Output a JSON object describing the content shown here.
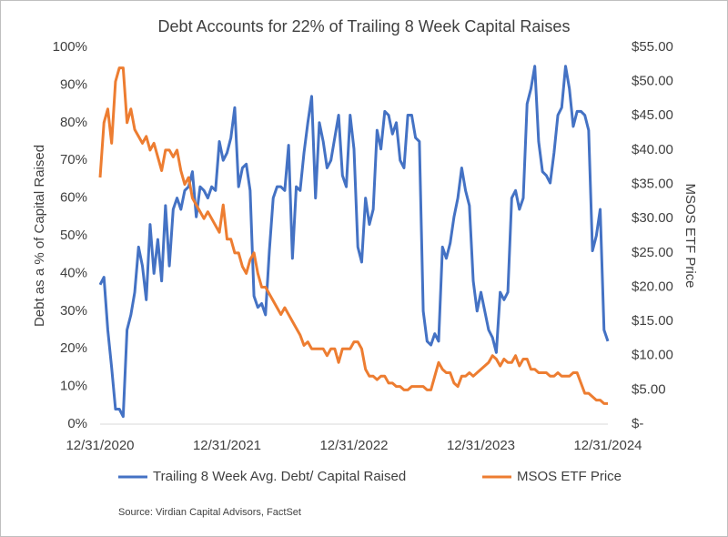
{
  "chart_data": {
    "type": "line",
    "title": "Debt Accounts for 22% of Trailing 8 Week Capital Raises",
    "y_label": "Debt as a % of Capital Raised",
    "y2_label": "MSOS ETF Price",
    "source": "Source: Virdian Capital Advisors, FactSet",
    "categories": [
      "12/31/2020",
      null,
      null,
      null,
      null,
      null,
      null,
      null,
      null,
      null,
      null,
      null,
      null,
      null,
      null,
      null,
      null,
      null,
      null,
      null,
      null,
      null,
      null,
      null,
      null,
      null,
      null,
      null,
      null,
      null,
      null,
      null,
      null,
      "12/31/2021",
      null,
      null,
      null,
      null,
      null,
      null,
      null,
      null,
      null,
      null,
      null,
      null,
      null,
      null,
      null,
      null,
      null,
      null,
      null,
      null,
      null,
      null,
      null,
      null,
      null,
      null,
      null,
      null,
      null,
      null,
      null,
      null,
      "12/31/2022",
      null,
      null,
      null,
      null,
      null,
      null,
      null,
      null,
      null,
      null,
      null,
      null,
      null,
      null,
      null,
      null,
      null,
      null,
      null,
      null,
      null,
      null,
      null,
      null,
      null,
      null,
      null,
      null,
      null,
      null,
      null,
      null,
      "12/31/2023",
      null,
      null,
      null,
      null,
      null,
      null,
      null,
      null,
      null,
      null,
      null,
      null,
      null,
      null,
      null,
      null,
      null,
      null,
      null,
      null,
      null,
      null,
      null,
      null,
      null,
      null,
      null,
      null,
      null,
      null,
      null,
      null,
      "12/31/2024"
    ],
    "series": [
      {
        "name": "Trailing 8 Week Avg. Debt/ Capital Raised",
        "color": "#4472c4",
        "axis": "y",
        "values": [
          37,
          39,
          25,
          15,
          4,
          4,
          2,
          25,
          29,
          35,
          47,
          42,
          33,
          53,
          40,
          49,
          38,
          58,
          42,
          57,
          60,
          57,
          62,
          63,
          67,
          55,
          63,
          62,
          60,
          63,
          62,
          75,
          70,
          72,
          76,
          84,
          63,
          68,
          69,
          62,
          34,
          31,
          32,
          29,
          46,
          60,
          63,
          63,
          62,
          74,
          44,
          63,
          62,
          72,
          80,
          87,
          60,
          80,
          75,
          68,
          70,
          76,
          82,
          66,
          63,
          82,
          73,
          47,
          43,
          60,
          53,
          57,
          78,
          73,
          83,
          82,
          77,
          80,
          70,
          68,
          82,
          82,
          76,
          75,
          30,
          22,
          21,
          24,
          22,
          47,
          44,
          48,
          55,
          60,
          68,
          62,
          58,
          38,
          30,
          35,
          30,
          25,
          23,
          19,
          35,
          33,
          35,
          60,
          62,
          57,
          60,
          85,
          89,
          95,
          75,
          67,
          66,
          64,
          72,
          82,
          84,
          95,
          89,
          79,
          83,
          83,
          82,
          78,
          46,
          50,
          57,
          25,
          22
        ]
      },
      {
        "name": "MSOS ETF Price",
        "color": "#ed7d31",
        "axis": "y2",
        "values": [
          36,
          44,
          46,
          41,
          50,
          52,
          52,
          44,
          46,
          43,
          42,
          41,
          42,
          40,
          41,
          39,
          37,
          40,
          40,
          39,
          40,
          37,
          35,
          36,
          33,
          32,
          31,
          30,
          31,
          30,
          29,
          28,
          32,
          27,
          27,
          25,
          25,
          23,
          22,
          24,
          25,
          22,
          20,
          20,
          19,
          18,
          17,
          16,
          17,
          16,
          15,
          14,
          13,
          11.5,
          12,
          11,
          11,
          11,
          11,
          10,
          11,
          11,
          9,
          11,
          11,
          11,
          12,
          12,
          11,
          8,
          7,
          7,
          6.5,
          7,
          7,
          6,
          6,
          5.5,
          5.5,
          5,
          5,
          5.5,
          5.5,
          5.5,
          5.5,
          5,
          5,
          7,
          9,
          8,
          7.5,
          7.5,
          6,
          5.5,
          7,
          7,
          7.5,
          7,
          7.5,
          8,
          8.5,
          9,
          10,
          9.5,
          8.5,
          9.5,
          9,
          9,
          10,
          8.5,
          9.5,
          9.5,
          8,
          8,
          7.5,
          7.5,
          7.5,
          7,
          7,
          7.5,
          7,
          7,
          7,
          7.5,
          7.5,
          6,
          4.5,
          4.5,
          4,
          3.5,
          3.5,
          3,
          3
        ]
      }
    ],
    "ylim": [
      0,
      100
    ],
    "yticks": [
      {
        "value": 0,
        "label": "0%"
      },
      {
        "value": 10,
        "label": "10%"
      },
      {
        "value": 20,
        "label": "20%"
      },
      {
        "value": 30,
        "label": "30%"
      },
      {
        "value": 40,
        "label": "40%"
      },
      {
        "value": 50,
        "label": "50%"
      },
      {
        "value": 60,
        "label": "60%"
      },
      {
        "value": 70,
        "label": "70%"
      },
      {
        "value": 80,
        "label": "80%"
      },
      {
        "value": 90,
        "label": "90%"
      },
      {
        "value": 100,
        "label": "100%"
      }
    ],
    "y2lim": [
      0,
      55
    ],
    "y2ticks": [
      {
        "value": 0,
        "label": "$-"
      },
      {
        "value": 5,
        "label": "$5.00"
      },
      {
        "value": 10,
        "label": "$10.00"
      },
      {
        "value": 15,
        "label": "$15.00"
      },
      {
        "value": 20,
        "label": "$20.00"
      },
      {
        "value": 25,
        "label": "$25.00"
      },
      {
        "value": 30,
        "label": "$30.00"
      },
      {
        "value": 35,
        "label": "$35.00"
      },
      {
        "value": 40,
        "label": "$40.00"
      },
      {
        "value": 45,
        "label": "$45.00"
      },
      {
        "value": 50,
        "label": "$50.00"
      },
      {
        "value": 55,
        "label": "$55.00"
      }
    ],
    "grid": false,
    "legend": "bottom"
  }
}
